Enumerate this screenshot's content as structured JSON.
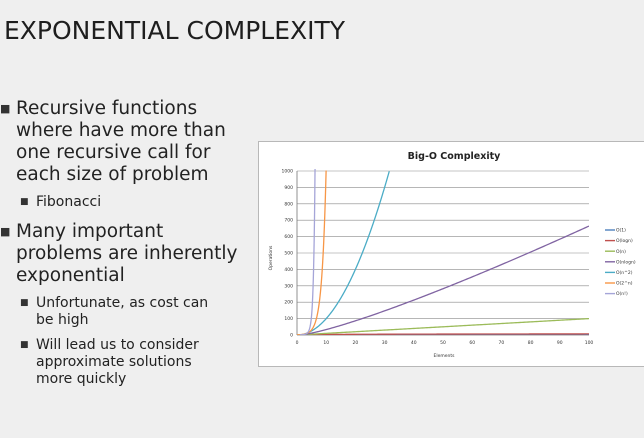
{
  "slide": {
    "title": "EXPONENTIAL COMPLEXITY",
    "bullets": [
      {
        "text": "Recursive functions where have more than one recursive call for each size of problem",
        "lines": [
          "Recursive functions",
          "where have more than",
          "one recursive call for",
          "each size of problem"
        ],
        "sub": [
          {
            "lines": [
              "Fibonacci"
            ]
          }
        ]
      },
      {
        "text": "Many important problems are inherently exponential",
        "lines": [
          "Many important",
          "problems are inherently",
          "exponential"
        ],
        "sub": [
          {
            "lines": [
              "Unfortunate, as cost can",
              "be high"
            ]
          },
          {
            "lines": [
              "Will lead us to consider",
              "approximate solutions",
              "more quickly"
            ]
          }
        ]
      }
    ]
  },
  "chart_data": {
    "type": "line",
    "title": "Big-O Complexity",
    "xlabel": "Elements",
    "ylabel": "Operations",
    "xlim": [
      0,
      100
    ],
    "ylim": [
      0,
      1000
    ],
    "x_ticks": [
      0,
      10,
      20,
      30,
      40,
      50,
      60,
      70,
      80,
      90,
      100
    ],
    "y_ticks": [
      0,
      100,
      200,
      300,
      400,
      500,
      600,
      700,
      800,
      900,
      1000
    ],
    "grid": "horizontal",
    "legend_position": "right",
    "series": [
      {
        "name": "O(1)",
        "color": "#4f81bd",
        "x": [
          0,
          100
        ],
        "y": [
          1,
          1
        ]
      },
      {
        "name": "O(logn)",
        "color": "#c0504d",
        "x": [
          1,
          10,
          25,
          50,
          75,
          100
        ],
        "y": [
          0,
          3.3,
          4.6,
          5.6,
          6.2,
          6.6
        ]
      },
      {
        "name": "O(n)",
        "color": "#9bbb59",
        "x": [
          0,
          25,
          50,
          75,
          100
        ],
        "y": [
          0,
          25,
          50,
          75,
          100
        ]
      },
      {
        "name": "O(nlogn)",
        "color": "#8064a2",
        "x": [
          1,
          10,
          20,
          40,
          60,
          80,
          100
        ],
        "y": [
          0,
          33,
          86,
          213,
          354,
          506,
          664
        ]
      },
      {
        "name": "O(n^2)",
        "color": "#4bacc6",
        "x": [
          0,
          5,
          10,
          15,
          20,
          25,
          30,
          31.6
        ],
        "y": [
          0,
          25,
          100,
          225,
          400,
          625,
          900,
          1000
        ]
      },
      {
        "name": "O(2^n)",
        "color": "#f79646",
        "x": [
          0,
          4,
          6,
          7,
          8,
          9,
          9.97
        ],
        "y": [
          1,
          16,
          64,
          128,
          256,
          512,
          1000
        ]
      },
      {
        "name": "O(n!)",
        "color": "#a5a5d8",
        "x": [
          1,
          3,
          4,
          5,
          5.5,
          6,
          6.3
        ],
        "y": [
          1,
          6,
          24,
          120,
          290,
          720,
          1000
        ]
      }
    ]
  }
}
